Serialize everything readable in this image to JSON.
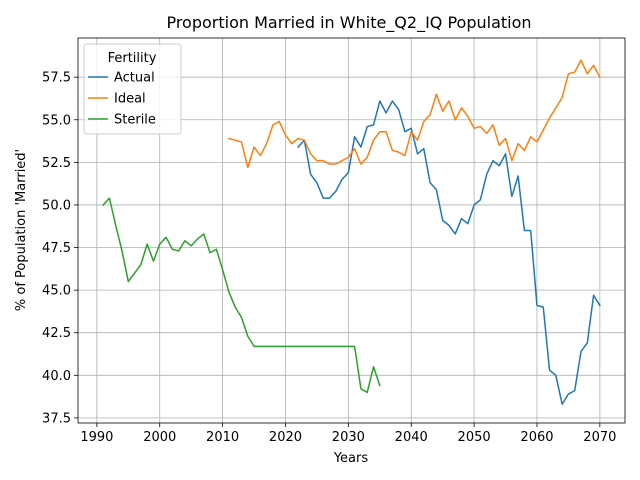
{
  "chart_data": {
    "type": "line",
    "title": "Proportion Married in White_Q2_IQ Population",
    "xlabel": "Years",
    "ylabel": "% of Population 'Married'",
    "xlim": [
      1987,
      2074
    ],
    "ylim": [
      37.2,
      59.8
    ],
    "xticks": [
      1990,
      2000,
      2010,
      2020,
      2030,
      2040,
      2050,
      2060,
      2070
    ],
    "yticks": [
      37.5,
      40.0,
      42.5,
      45.0,
      47.5,
      50.0,
      52.5,
      55.0,
      57.5
    ],
    "xtick_labels": [
      "1990",
      "2000",
      "2010",
      "2020",
      "2030",
      "2040",
      "2050",
      "2060",
      "2070"
    ],
    "ytick_labels": [
      "37.5",
      "40.0",
      "42.5",
      "45.0",
      "47.5",
      "50.0",
      "52.5",
      "55.0",
      "57.5"
    ],
    "grid": true,
    "legend": {
      "title": "Fertility",
      "placement": "upper-left"
    },
    "series": [
      {
        "name": "Actual",
        "color": "#1f77b4",
        "x": [
          2022,
          2023,
          2024,
          2025,
          2026,
          2027,
          2028,
          2029,
          2030,
          2031,
          2032,
          2033,
          2034,
          2035,
          2036,
          2037,
          2038,
          2039,
          2040,
          2041,
          2042,
          2043,
          2044,
          2045,
          2046,
          2047,
          2048,
          2049,
          2050,
          2051,
          2052,
          2053,
          2054,
          2055,
          2056,
          2057,
          2058,
          2059,
          2060,
          2061,
          2062,
          2063,
          2064,
          2065,
          2066,
          2067,
          2068,
          2069,
          2070
        ],
        "y": [
          53.4,
          53.8,
          51.8,
          51.3,
          50.4,
          50.4,
          50.8,
          51.5,
          51.9,
          54.0,
          53.4,
          54.6,
          54.7,
          56.1,
          55.4,
          56.1,
          55.6,
          54.3,
          54.5,
          53.0,
          53.3,
          51.3,
          50.9,
          49.1,
          48.8,
          48.3,
          49.2,
          48.9,
          50.0,
          50.3,
          51.8,
          52.6,
          52.3,
          53.0,
          50.5,
          51.7,
          48.5,
          48.5,
          44.1,
          44.0,
          40.3,
          40.0,
          38.3,
          38.9,
          39.1,
          41.4,
          41.9,
          44.7,
          44.1
        ]
      },
      {
        "name": "Ideal",
        "color": "#ff7f0e",
        "x": [
          2011,
          2012,
          2013,
          2014,
          2015,
          2016,
          2017,
          2018,
          2019,
          2020,
          2021,
          2022,
          2023,
          2024,
          2025,
          2026,
          2027,
          2028,
          2029,
          2030,
          2031,
          2032,
          2033,
          2034,
          2035,
          2036,
          2037,
          2038,
          2039,
          2040,
          2041,
          2042,
          2043,
          2044,
          2045,
          2046,
          2047,
          2048,
          2049,
          2050,
          2051,
          2052,
          2053,
          2054,
          2055,
          2056,
          2057,
          2058,
          2059,
          2060,
          2061,
          2062,
          2063,
          2064,
          2065,
          2066,
          2067,
          2068,
          2069,
          2070
        ],
        "y": [
          53.9,
          53.8,
          53.7,
          52.2,
          53.4,
          52.9,
          53.6,
          54.7,
          54.9,
          54.1,
          53.6,
          53.9,
          53.8,
          53.0,
          52.6,
          52.6,
          52.4,
          52.4,
          52.6,
          52.8,
          53.3,
          52.4,
          52.8,
          53.8,
          54.3,
          54.3,
          53.2,
          53.1,
          52.9,
          54.3,
          53.8,
          54.9,
          55.3,
          56.5,
          55.5,
          56.1,
          55.0,
          55.7,
          55.2,
          54.5,
          54.6,
          54.2,
          54.7,
          53.5,
          53.9,
          52.6,
          53.6,
          53.2,
          54.0,
          53.7,
          54.4,
          55.1,
          55.7,
          56.3,
          57.7,
          57.8,
          58.5,
          57.7,
          58.2,
          57.5
        ]
      },
      {
        "name": "Sterile",
        "color": "#2ca02c",
        "x": [
          1991,
          1992,
          1993,
          1994,
          1995,
          1996,
          1997,
          1998,
          1999,
          2000,
          2001,
          2002,
          2003,
          2004,
          2005,
          2006,
          2007,
          2008,
          2009,
          2010,
          2011,
          2012,
          2013,
          2014,
          2015,
          2016,
          2017,
          2018,
          2019,
          2020,
          2021,
          2022,
          2023,
          2024,
          2025,
          2026,
          2027,
          2028,
          2029,
          2030,
          2031,
          2032,
          2033,
          2034,
          2035
        ],
        "y": [
          50.0,
          50.4,
          48.8,
          47.3,
          45.5,
          46.0,
          46.5,
          47.7,
          46.7,
          47.7,
          48.1,
          47.4,
          47.3,
          47.9,
          47.6,
          48.0,
          48.3,
          47.2,
          47.4,
          46.2,
          44.9,
          44.0,
          43.4,
          42.3,
          41.7,
          41.7,
          41.7,
          41.7,
          41.7,
          41.7,
          41.7,
          41.7,
          41.7,
          41.7,
          41.7,
          41.7,
          41.7,
          41.7,
          41.7,
          41.7,
          41.7,
          39.2,
          39.0,
          40.5,
          39.4
        ]
      }
    ]
  }
}
